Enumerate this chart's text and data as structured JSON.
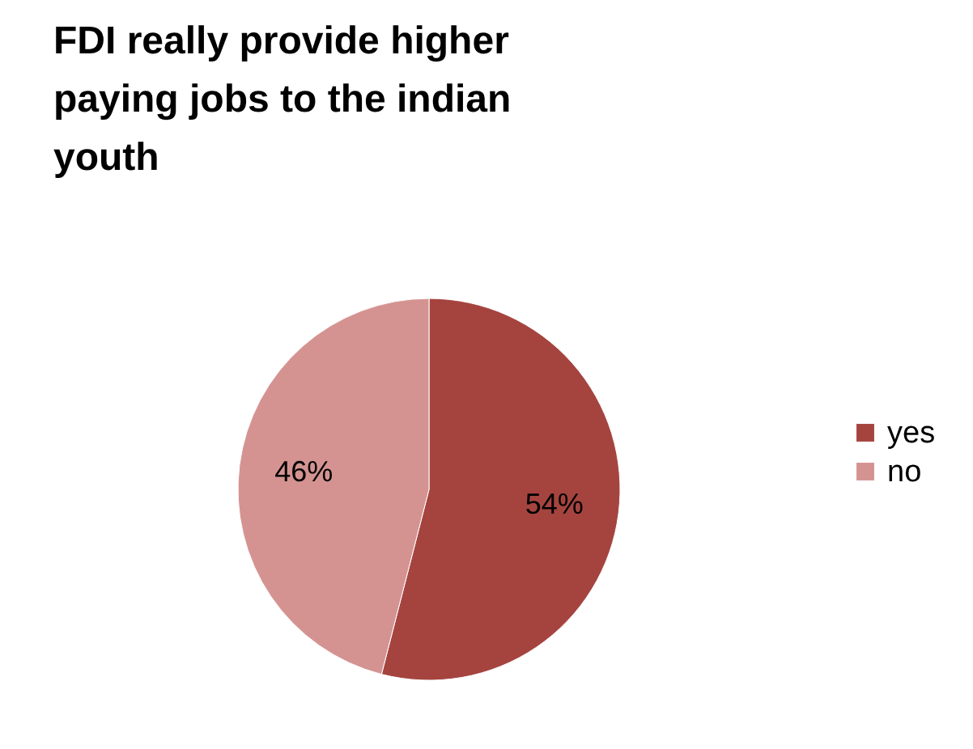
{
  "chart_data": {
    "type": "pie",
    "title": "FDI really provide higher paying jobs to the indian youth",
    "categories": [
      "yes",
      "no"
    ],
    "values": [
      54,
      46
    ],
    "colors": [
      "#a5443f",
      "#d49391"
    ],
    "value_labels": [
      "54%",
      "46%"
    ],
    "legend": "right"
  }
}
